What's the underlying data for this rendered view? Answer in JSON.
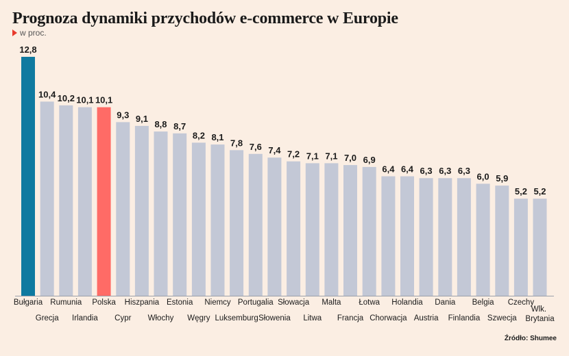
{
  "title": "Prognoza dynamiki przychodów e-commerce w Europie",
  "subtitle": "w proc.",
  "source": "Źródło: Shumee",
  "colors": {
    "default": "#c3c8d6",
    "highlight_first": "#0f7aa0",
    "highlight_poland": "#ff6b66",
    "axis": "#9aa0aa",
    "background": "#fbeee3"
  },
  "chart_data": {
    "type": "bar",
    "categories": [
      "Bułgaria",
      "Grecja",
      "Rumunia",
      "Irlandia",
      "Polska",
      "Cypr",
      "Hiszpania",
      "Włochy",
      "Estonia",
      "Węgry",
      "Niemcy",
      "Luksemburg",
      "Portugalia",
      "Słowenia",
      "Słowacja",
      "Litwa",
      "Malta",
      "Francja",
      "Łotwa",
      "Chorwacja",
      "Holandia",
      "Austria",
      "Dania",
      "Finlandia",
      "Belgia",
      "Szwecja",
      "Czechy",
      "Wlk. Brytania"
    ],
    "values": [
      12.8,
      10.4,
      10.2,
      10.1,
      10.1,
      9.3,
      9.1,
      8.8,
      8.7,
      8.2,
      8.1,
      7.8,
      7.6,
      7.4,
      7.2,
      7.1,
      7.1,
      7.0,
      6.9,
      6.4,
      6.4,
      6.3,
      6.3,
      6.3,
      6.0,
      5.9,
      5.2,
      5.2
    ],
    "value_labels": [
      "12,8",
      "10,4",
      "10,2",
      "10,1",
      "10,1",
      "9,3",
      "9,1",
      "8,8",
      "8,7",
      "8,2",
      "8,1",
      "7,8",
      "7,6",
      "7,4",
      "7,2",
      "7,1",
      "7,1",
      "7,0",
      "6,9",
      "6,4",
      "6,4",
      "6,3",
      "6,3",
      "6,3",
      "6,0",
      "5,9",
      "5,2",
      "5,2"
    ],
    "highlight": {
      "Bułgaria": "highlight_first",
      "Polska": "highlight_poland"
    },
    "ylim": [
      0,
      12.8
    ],
    "grid": false,
    "legend": "none"
  }
}
